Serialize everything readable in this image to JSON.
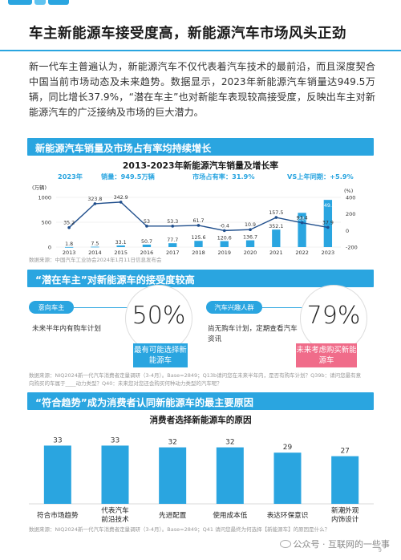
{
  "header": {
    "title": "车主新能源车接受度高，新能源汽车市场风头正劲",
    "intro": "新一代车主普遍认为，新能源汽车不仅代表着汽车技术的最前沿，而且深度契合中国当前市场动态及未来趋势。数据显示，2023年新能源汽车销量达949.5万辆，同比增长37.9%，“潜在车主”也对新能车表现较高接受度，反映出车主对新能源汽车的广泛接纳及市场的巨大潜力。"
  },
  "section1": {
    "heading": "新能源汽车销量及市场占有率均持续增长",
    "chart_title": "2013-2023年新能源汽车销量及增长率",
    "stat_year": "2023年",
    "stat_sales": "销量：949.5万辆",
    "stat_share": "市场占有率：31.9%",
    "stat_yoy": "VS上年同期：+5.9%",
    "unit_left": "(万辆)",
    "unit_right": "(%)",
    "source": "数据来源：中国汽车工业协会2024年1月11日信息发布会"
  },
  "chart_data": {
    "type": "bar",
    "title": "2013-2023年新能源汽车销量及增长率",
    "categories": [
      "2013",
      "2014",
      "2015",
      "2016",
      "2017",
      "2018",
      "2019",
      "2020",
      "2021",
      "2022",
      "2023"
    ],
    "series": [
      {
        "values": [
          1.8,
          7.5,
          33.1,
          50.7,
          77.7,
          125.6,
          120.6,
          136.7,
          352.1,
          688.7,
          949.5
        ]
      },
      {
        "values": [
          35.2,
          323.8,
          342.9,
          53,
          53.3,
          61.7,
          -0.4,
          10.9,
          157.5,
          93.4,
          37.9
        ]
      }
    ],
    "y_left_ticks": [
      "1000",
      "500",
      "0"
    ],
    "y_left_lim": [
      0,
      1000
    ],
    "y_right_ticks": [
      "400",
      "200",
      "0",
      "-200"
    ],
    "y_right_lim": [
      -200,
      400
    ]
  },
  "section2": {
    "heading": "“潜在车主”对新能源车的接受度较高",
    "left_pill": "意向车主",
    "left_desc": "未来半年内有购车计划",
    "left_value": "50%",
    "left_label": "最有可能选择新能源车",
    "right_pill": "汽车兴趣人群",
    "right_desc": "尚无购车计划，定期查看汽车资讯",
    "right_value": "79%",
    "right_label": "未来考虑购买新能源车",
    "source": "数据来源：NIQ2024新一代汽车消费者定量调研（3-4月）。Base=2849；Q13b请问您在未来半年内，是否有购车计划？Q39b：请问您最有意向购买的车属于____动力类型？Q40：未来您对您还会购买何种动力类型的汽车呢？"
  },
  "section3": {
    "heading": "“符合趋势”成为消费者认同新能源车的最主要原因",
    "chart_title": "消费者选择新能源车的原因",
    "source": "数据来源：NIQ2024新一代汽车消费者定量调研（3-4月）。Base=2849；Q41 请问您最终为何选择【新能源车】的原因是什么？"
  },
  "reasons": [
    {
      "label1": "符合市场趋势",
      "label2": "",
      "value": 33
    },
    {
      "label1": "代表汽车",
      "label2": "前沿技术",
      "value": 33
    },
    {
      "label1": "先进配置",
      "label2": "",
      "value": 32
    },
    {
      "label1": "使用成本低",
      "label2": "",
      "value": 32
    },
    {
      "label1": "表达环保意识",
      "label2": "",
      "value": 29
    },
    {
      "label1": "新潮外观",
      "label2": "内饰设计",
      "value": 27
    }
  ],
  "footer": {
    "watermark": "公众号 · 互联网的一些事",
    "page": "9"
  },
  "colors": {
    "accent": "#2aa5e0",
    "pink": "#f06c8a",
    "line": "#1f4e8c"
  }
}
